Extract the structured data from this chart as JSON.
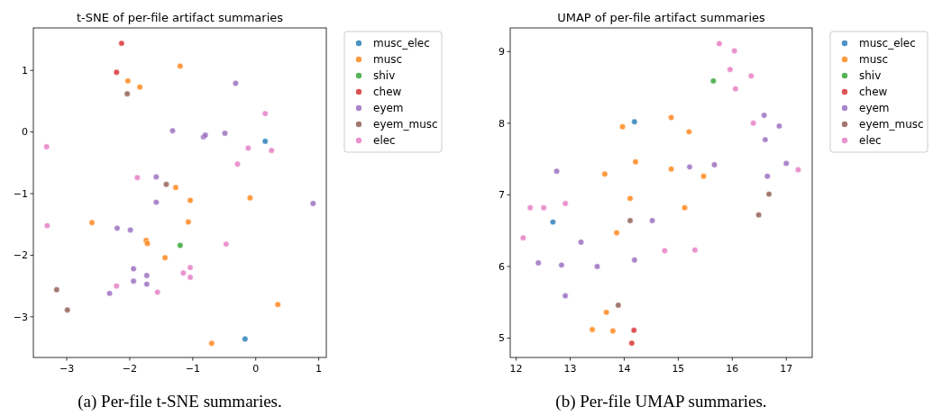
{
  "chart_data": [
    {
      "type": "scatter",
      "title": "t-SNE of per-file artifact summaries",
      "xlim": [
        -3.53,
        1.12
      ],
      "ylim": [
        -3.66,
        1.69
      ],
      "xticks": [
        -3,
        -2,
        -1,
        0,
        1
      ],
      "yticks": [
        -3,
        -2,
        -1,
        0,
        1
      ],
      "legend": "right",
      "marker": "circle",
      "annotations": [
        "(a) Per-file t-SNE summaries."
      ],
      "series": [
        {
          "name": "musc_elec",
          "color": "#1f77b4",
          "x": [
            0.15,
            -0.17
          ],
          "values": [
            -0.15,
            -3.36
          ]
        },
        {
          "name": "musc",
          "color": "#ff7f0e",
          "x": [
            -2.03,
            -1.84,
            -1.2,
            -1.27,
            -0.09,
            -1.04,
            -2.6,
            -1.07,
            -1.74,
            -1.72,
            -1.44,
            0.35,
            -0.7
          ],
          "values": [
            0.83,
            0.73,
            1.07,
            -0.9,
            -1.07,
            -1.11,
            -1.47,
            -1.46,
            -1.76,
            -1.81,
            -2.04,
            -2.8,
            -3.43
          ]
        },
        {
          "name": "shiv",
          "color": "#2ca02c",
          "x": [
            -1.2
          ],
          "values": [
            -1.84
          ]
        },
        {
          "name": "chew",
          "color": "#d62728",
          "x": [
            -2.13,
            -2.21
          ],
          "values": [
            1.44,
            0.97
          ]
        },
        {
          "name": "eyem",
          "color": "#9467bd",
          "x": [
            -0.32,
            -1.32,
            -0.83,
            -0.8,
            -0.49,
            -1.58,
            0.91,
            -1.58,
            -2.2,
            -1.99,
            -1.94,
            -1.73,
            -1.94,
            -1.73,
            -2.32
          ],
          "values": [
            0.79,
            0.02,
            -0.08,
            -0.05,
            -0.02,
            -0.73,
            -1.16,
            -1.14,
            -1.56,
            -1.59,
            -2.22,
            -2.33,
            -2.42,
            -2.47,
            -2.62
          ]
        },
        {
          "name": "eyem_musc",
          "color": "#8c564b",
          "x": [
            -2.04,
            -1.42,
            -3.16,
            -2.99
          ],
          "values": [
            0.62,
            -0.85,
            -2.56,
            -2.89
          ]
        },
        {
          "name": "elec",
          "color": "#e377c2",
          "x": [
            0.15,
            -0.12,
            0.25,
            -3.32,
            -0.29,
            -1.88,
            -3.31,
            -0.47,
            -1.04,
            -1.15,
            -1.04,
            -2.21,
            -1.56
          ],
          "values": [
            0.3,
            -0.26,
            -0.3,
            -0.24,
            -0.52,
            -0.74,
            -1.52,
            -1.82,
            -2.2,
            -2.29,
            -2.36,
            -2.5,
            -2.6
          ]
        }
      ]
    },
    {
      "type": "scatter",
      "title": "UMAP of per-file artifact summaries",
      "xlim": [
        11.89,
        17.48
      ],
      "ylim": [
        4.73,
        9.33
      ],
      "xticks": [
        12,
        13,
        14,
        15,
        16,
        17
      ],
      "yticks": [
        5,
        6,
        7,
        8,
        9
      ],
      "legend": "right",
      "marker": "circle",
      "annotations": [
        "(b) Per-file UMAP summaries."
      ],
      "series": [
        {
          "name": "musc_elec",
          "color": "#1f77b4",
          "x": [
            14.19,
            12.68
          ],
          "values": [
            8.02,
            6.62
          ]
        },
        {
          "name": "musc",
          "color": "#ff7f0e",
          "x": [
            13.97,
            14.87,
            15.2,
            13.64,
            14.21,
            14.87,
            15.47,
            14.11,
            15.12,
            13.86,
            13.67,
            13.41,
            13.79
          ],
          "values": [
            7.95,
            8.08,
            7.88,
            7.29,
            7.46,
            7.36,
            7.26,
            6.95,
            6.82,
            6.47,
            5.36,
            5.12,
            5.1
          ]
        },
        {
          "name": "shiv",
          "color": "#2ca02c",
          "x": [
            15.65
          ],
          "values": [
            8.59
          ]
        },
        {
          "name": "chew",
          "color": "#d62728",
          "x": [
            14.18,
            14.14
          ],
          "values": [
            5.11,
            4.93
          ]
        },
        {
          "name": "eyem",
          "color": "#9467bd",
          "x": [
            16.59,
            16.87,
            16.61,
            12.75,
            15.21,
            15.67,
            17.0,
            16.65,
            14.52,
            13.2,
            12.41,
            12.84,
            13.5,
            14.19,
            12.91
          ],
          "values": [
            8.11,
            7.96,
            7.77,
            7.33,
            7.39,
            7.42,
            7.44,
            7.26,
            6.64,
            6.34,
            6.05,
            6.02,
            6.0,
            6.09,
            5.59
          ]
        },
        {
          "name": "eyem_musc",
          "color": "#8c564b",
          "x": [
            16.68,
            16.49,
            14.11,
            13.89
          ],
          "values": [
            7.01,
            6.72,
            6.64,
            5.46
          ]
        },
        {
          "name": "elec",
          "color": "#e377c2",
          "x": [
            15.76,
            16.04,
            15.96,
            16.35,
            16.06,
            16.39,
            17.22,
            12.26,
            12.51,
            12.91,
            12.13,
            14.75,
            15.31
          ],
          "values": [
            9.11,
            9.01,
            8.75,
            8.66,
            8.48,
            8.0,
            7.35,
            6.82,
            6.82,
            6.88,
            6.4,
            6.22,
            6.23
          ]
        }
      ]
    }
  ]
}
